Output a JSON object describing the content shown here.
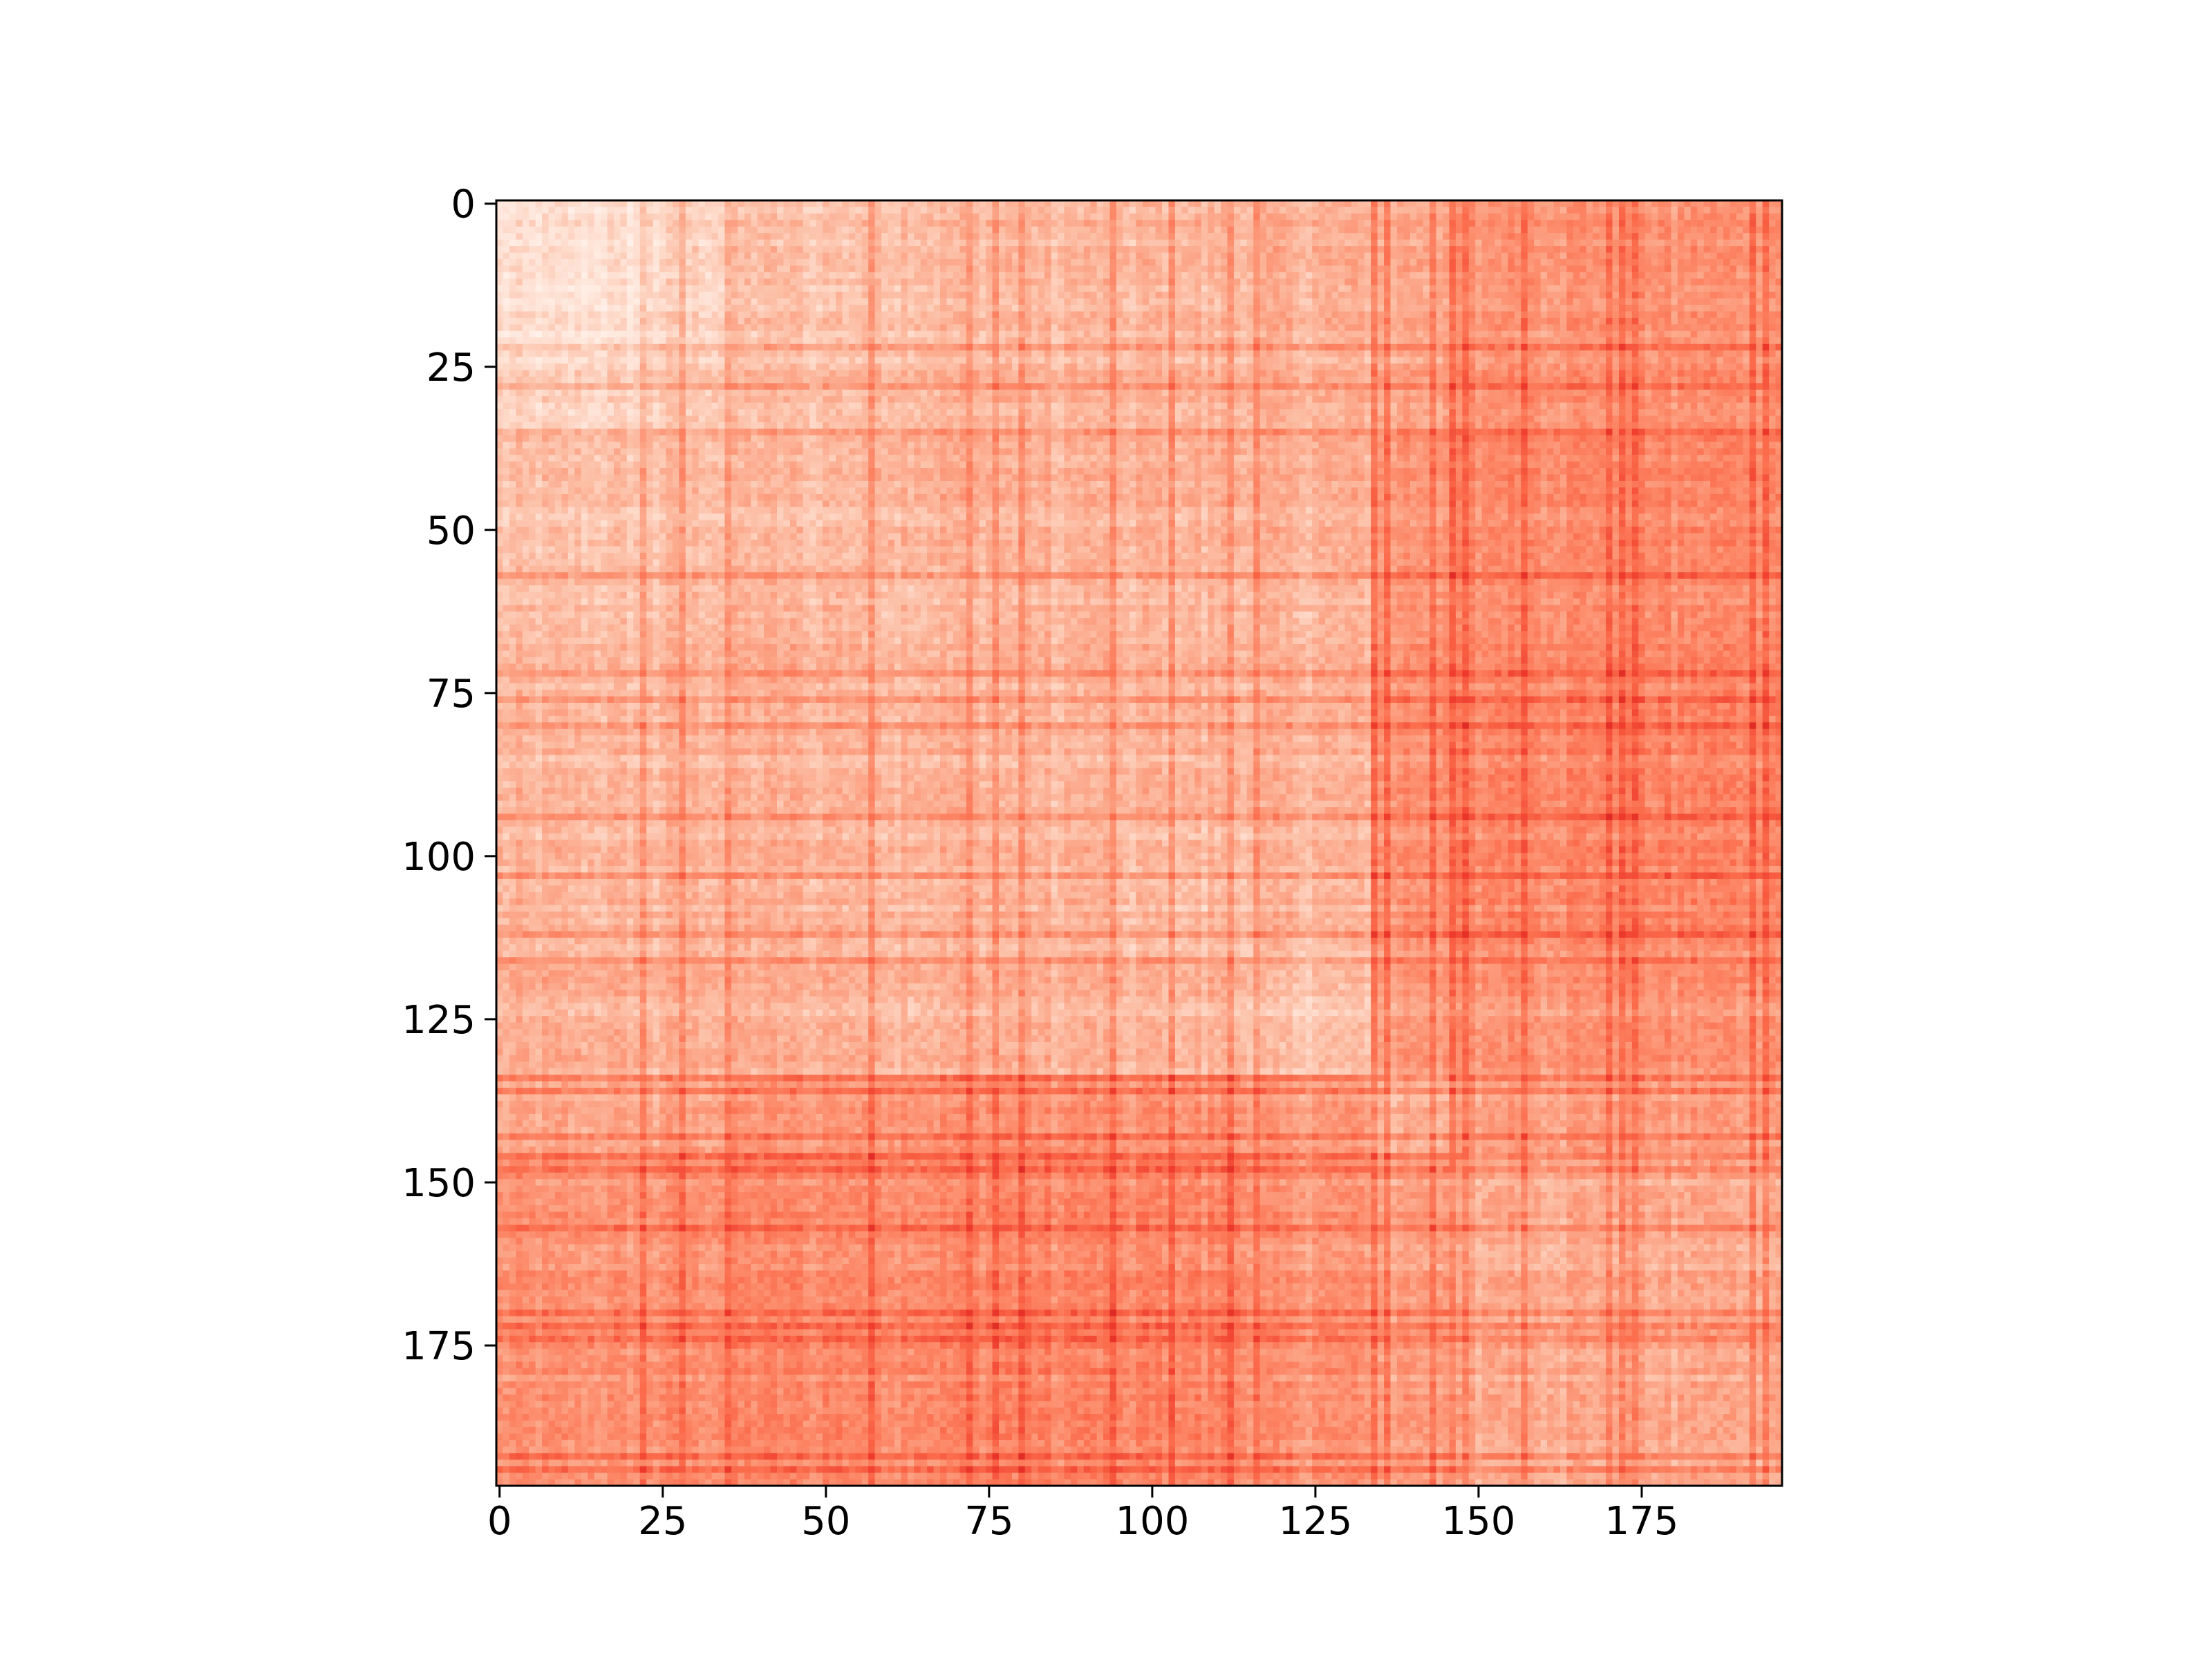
{
  "chart_data": {
    "type": "heatmap",
    "title": "",
    "xlabel": "",
    "ylabel": "",
    "size": 197,
    "colormap": "Reds",
    "colormap_colors": [
      "#fff5f0",
      "#fee0d2",
      "#fcbba1",
      "#fc9272",
      "#fb6a4a",
      "#ef3b2c",
      "#cb181d"
    ],
    "xlim": [
      0,
      196
    ],
    "ylim": [
      196,
      0
    ],
    "x_ticks": [
      0,
      25,
      50,
      75,
      100,
      125,
      150,
      175
    ],
    "y_ticks": [
      0,
      25,
      50,
      75,
      100,
      125,
      150,
      175
    ],
    "x_tick_labels": [
      "0",
      "25",
      "50",
      "75",
      "100",
      "125",
      "150",
      "175"
    ],
    "y_tick_labels": [
      "0",
      "25",
      "50",
      "75",
      "100",
      "125",
      "150",
      "175"
    ],
    "block_boundaries": [
      0,
      23,
      36,
      56,
      75,
      95,
      115,
      134,
      146,
      197
    ],
    "block_mean_intensity": [
      [
        0.15,
        0.22,
        0.3,
        0.33,
        0.34,
        0.35,
        0.37,
        0.42,
        0.5
      ],
      [
        0.22,
        0.28,
        0.33,
        0.36,
        0.36,
        0.37,
        0.38,
        0.45,
        0.52
      ],
      [
        0.3,
        0.33,
        0.34,
        0.38,
        0.37,
        0.38,
        0.38,
        0.5,
        0.55
      ],
      [
        0.33,
        0.36,
        0.38,
        0.36,
        0.38,
        0.37,
        0.37,
        0.52,
        0.55
      ],
      [
        0.34,
        0.36,
        0.37,
        0.38,
        0.35,
        0.37,
        0.37,
        0.52,
        0.56
      ],
      [
        0.35,
        0.37,
        0.38,
        0.37,
        0.37,
        0.35,
        0.36,
        0.52,
        0.56
      ],
      [
        0.37,
        0.38,
        0.38,
        0.37,
        0.37,
        0.36,
        0.3,
        0.48,
        0.5
      ],
      [
        0.42,
        0.45,
        0.5,
        0.52,
        0.52,
        0.52,
        0.48,
        0.4,
        0.48
      ],
      [
        0.5,
        0.52,
        0.55,
        0.55,
        0.56,
        0.56,
        0.5,
        0.48,
        0.42
      ]
    ],
    "strong_lines": [
      22,
      28,
      35,
      57,
      72,
      76,
      80,
      94,
      103,
      112,
      116,
      134,
      136,
      143,
      146,
      148,
      157,
      170,
      172,
      174,
      192,
      194
    ],
    "light_lines": [
      24,
      48,
      61,
      85,
      97,
      108,
      124,
      137,
      150,
      160,
      163,
      180
    ],
    "noise_amplitude": 0.07,
    "line_effect_amplitude": 0.17
  }
}
